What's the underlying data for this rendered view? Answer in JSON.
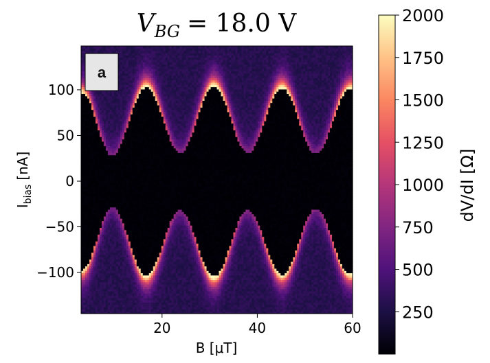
{
  "chart_data": {
    "type": "heatmap",
    "title": {
      "var": "V",
      "sub": "BG",
      "rest": "= 18.0 V"
    },
    "panel_label": "a",
    "xlabel": "B [μT]",
    "ylabel": {
      "main": "I",
      "sub": "bias",
      "unit": "[nA]"
    },
    "xlim": [
      3,
      60
    ],
    "ylim": [
      -145,
      148
    ],
    "xticks": [
      20,
      40,
      60
    ],
    "xtick_labels": [
      "20",
      "40",
      "60"
    ],
    "yticks": [
      100,
      50,
      0,
      -50,
      -100
    ],
    "ytick_labels": [
      "100",
      "50",
      "0",
      "−50",
      "−100"
    ],
    "colorbar": {
      "label": "dV/dI [Ω]",
      "range": [
        0,
        2000
      ],
      "ticks": [
        2000,
        1750,
        1500,
        1250,
        1000,
        750,
        500,
        250
      ],
      "tick_labels": [
        "2000",
        "1750",
        "1500",
        "1250",
        "1000",
        "750",
        "500",
        "250"
      ],
      "colormap": "magma",
      "colors": [
        "#000004",
        "#1c1044",
        "#4f127b",
        "#812581",
        "#b5367a",
        "#e55064",
        "#fb8761",
        "#fec287",
        "#fcfdbf"
      ]
    },
    "background_value": 300,
    "interior_value": 0,
    "critical_current": {
      "description_x_period": 14.3,
      "x": [
        3.2,
        9.5,
        16.7,
        23.8,
        30.9,
        38.0,
        45.2,
        52.3,
        59.5
      ],
      "upper_branch": [
        99,
        30,
        105,
        33,
        106,
        33,
        104,
        32,
        103
      ],
      "lower_branch": [
        -99,
        -30,
        -105,
        -33,
        -106,
        -33,
        -104,
        -32,
        -103
      ]
    },
    "peak_value_at_max": 2000,
    "peak_value_at_min": 700
  }
}
